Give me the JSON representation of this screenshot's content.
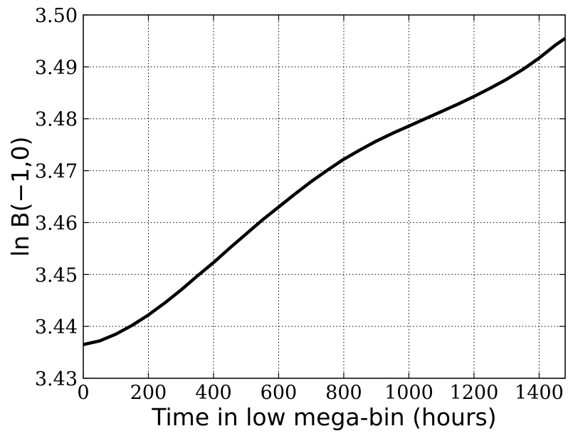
{
  "chart_data": {
    "type": "line",
    "title": "",
    "xlabel": "Time in low mega-bin (hours)",
    "ylabel": "ln B(−1,0)",
    "xlim": [
      0,
      1480
    ],
    "ylim": [
      3.43,
      3.5
    ],
    "grid": true,
    "legend": "none",
    "x_ticks": [
      0,
      200,
      400,
      600,
      800,
      1000,
      1200,
      1400
    ],
    "x_tick_labels": [
      "0",
      "200",
      "400",
      "600",
      "800",
      "1000",
      "1200",
      "1400"
    ],
    "y_ticks": [
      3.43,
      3.44,
      3.45,
      3.46,
      3.47,
      3.48,
      3.49,
      3.5
    ],
    "y_tick_labels": [
      "3.43",
      "3.44",
      "3.45",
      "3.46",
      "3.47",
      "3.48",
      "3.49",
      "3.50"
    ],
    "series": [
      {
        "color": "#000000",
        "x": [
          0,
          50,
          100,
          150,
          200,
          250,
          300,
          350,
          400,
          450,
          500,
          550,
          600,
          650,
          700,
          750,
          800,
          850,
          900,
          950,
          1000,
          1050,
          1100,
          1150,
          1200,
          1250,
          1300,
          1350,
          1400,
          1450,
          1480
        ],
        "y": [
          3.4365,
          3.4372,
          3.4385,
          3.4402,
          3.4422,
          3.4445,
          3.447,
          3.4497,
          3.4523,
          3.4551,
          3.4578,
          3.4605,
          3.463,
          3.4655,
          3.4679,
          3.4701,
          3.4722,
          3.474,
          3.4757,
          3.4772,
          3.4786,
          3.48,
          3.4814,
          3.4828,
          3.4843,
          3.4859,
          3.4876,
          3.4895,
          3.4917,
          3.4942,
          3.4955
        ]
      }
    ]
  }
}
